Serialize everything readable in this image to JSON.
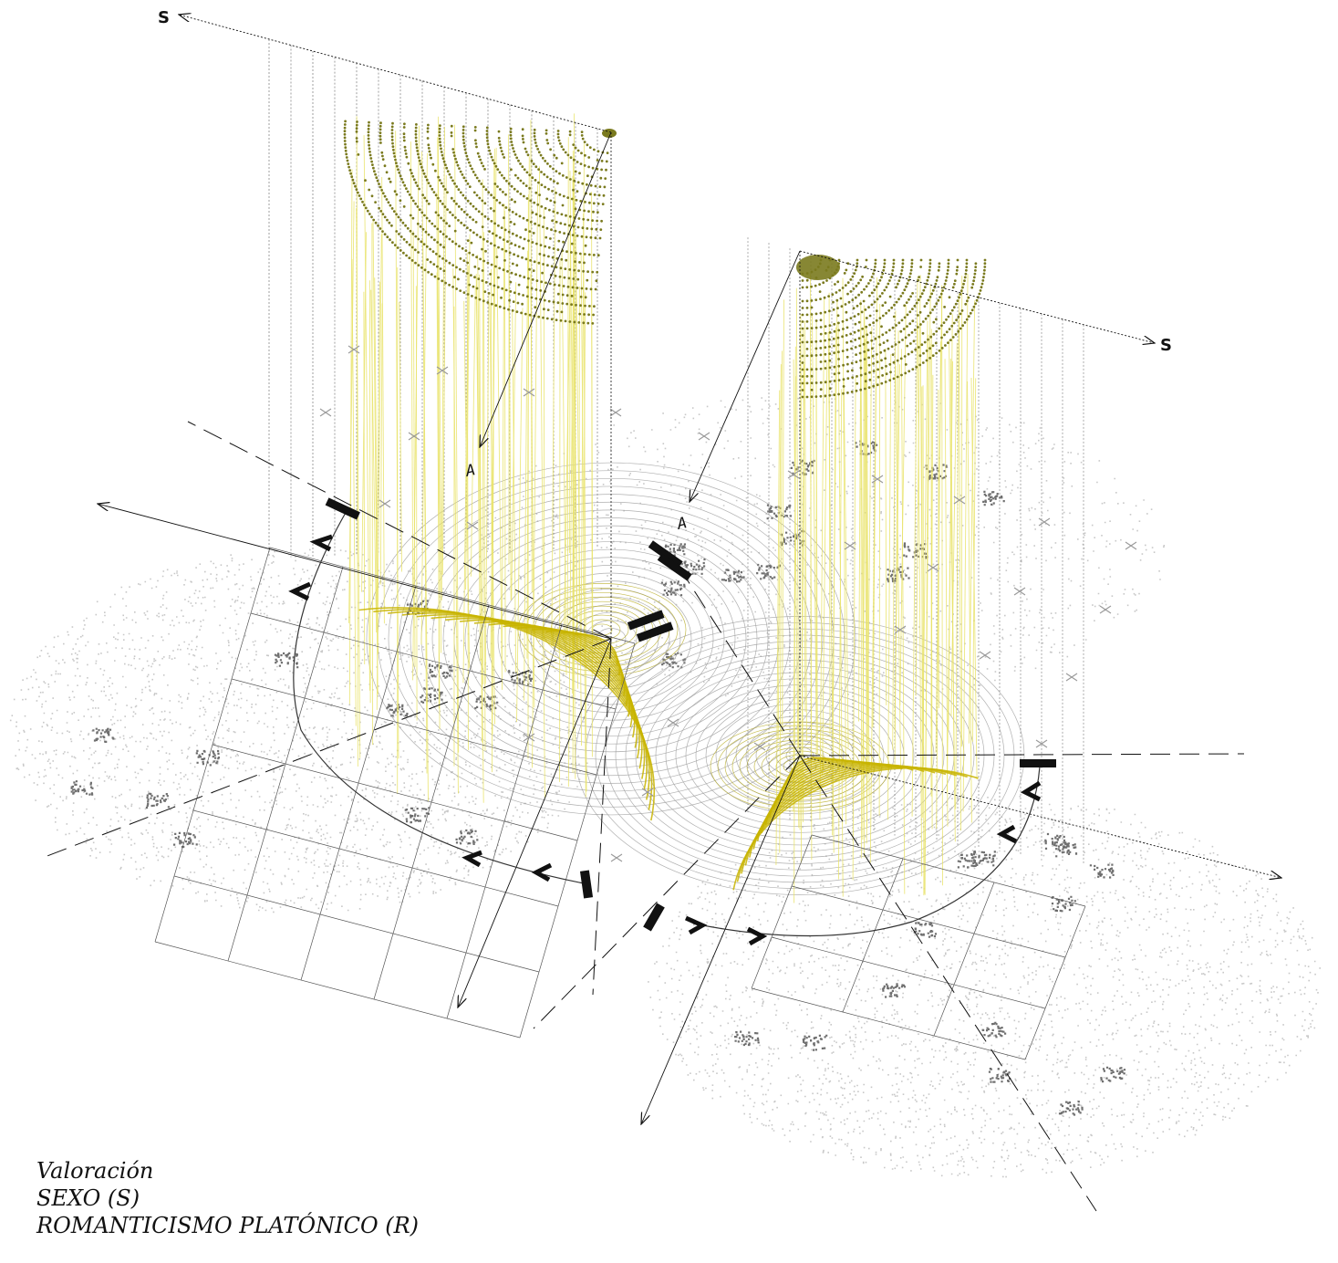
{
  "axes": {
    "left_s": "S",
    "right_s": "S",
    "left_a": "A",
    "right_a": "A"
  },
  "legend": {
    "title": "Valoración",
    "line1": "SEXO (S)",
    "line2": "ROMANTICISMO PLATÓNICO (R)"
  },
  "colors": {
    "data_dots": "#7a7a1e",
    "projection_lines": "#e9e36a",
    "arcs": "#c8b400",
    "grid": "#b0b0b0",
    "ink": "#111111"
  }
}
